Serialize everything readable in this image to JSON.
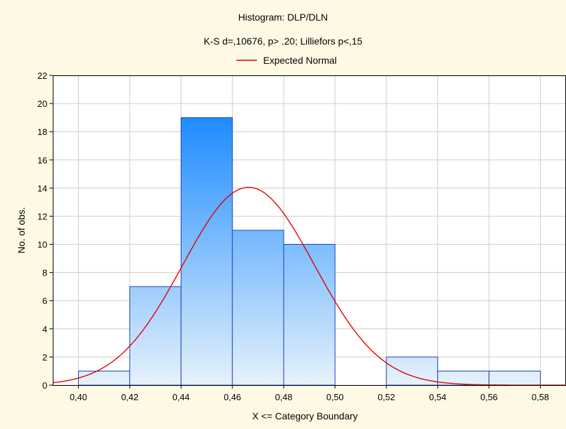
{
  "chart_data": {
    "type": "bar",
    "title": "Histogram: DLP/DLN",
    "subtitle": "K-S d=,10676, p> .20; Lilliefors p<,15",
    "legend": {
      "label": "Expected Normal",
      "placement": "top-center",
      "color": "#e00000"
    },
    "xlabel": "X <= Category Boundary",
    "ylabel": "No. of obs.",
    "xlim": [
      0.39,
      0.59
    ],
    "ylim": [
      0,
      22
    ],
    "x_ticks": [
      "0,40",
      "0,42",
      "0,44",
      "0,46",
      "0,48",
      "0,50",
      "0,52",
      "0,54",
      "0,56",
      "0,58"
    ],
    "y_ticks": [
      "0",
      "2",
      "4",
      "6",
      "8",
      "10",
      "12",
      "14",
      "16",
      "18",
      "20",
      "22"
    ],
    "bins": [
      {
        "from": 0.4,
        "to": 0.42,
        "value": 1
      },
      {
        "from": 0.42,
        "to": 0.44,
        "value": 7
      },
      {
        "from": 0.44,
        "to": 0.46,
        "value": 19
      },
      {
        "from": 0.46,
        "to": 0.48,
        "value": 11
      },
      {
        "from": 0.48,
        "to": 0.5,
        "value": 10
      },
      {
        "from": 0.5,
        "to": 0.52,
        "value": 0
      },
      {
        "from": 0.52,
        "to": 0.54,
        "value": 2
      },
      {
        "from": 0.54,
        "to": 0.56,
        "value": 1
      },
      {
        "from": 0.56,
        "to": 0.58,
        "value": 1
      }
    ],
    "normal_curve": {
      "mean": 0.4663,
      "sd": 0.0257,
      "peak": 14.05
    },
    "grid": true,
    "colors": {
      "bar_top": "#1e8cff",
      "bar_bottom": "#e6f2fb",
      "bar_edge": "#1a40c0",
      "curve": "#e00000",
      "grid": "#cccccc",
      "background": "#fdf9e4",
      "plot_bg": "#ffffff"
    }
  }
}
